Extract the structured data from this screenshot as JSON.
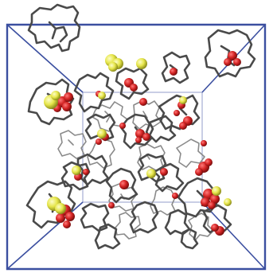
{
  "scene": {
    "kind": "3D molecular simulation box rendering",
    "colors": {
      "background": "#ffffff",
      "box_edges": "#3b4fa0",
      "molecule_backbone": "#4a4a4a",
      "molecule_backbone_faint": "#8a8a8a",
      "oxygen_atoms": "#d42424",
      "sulfur_atoms": "#e8e84a"
    }
  }
}
